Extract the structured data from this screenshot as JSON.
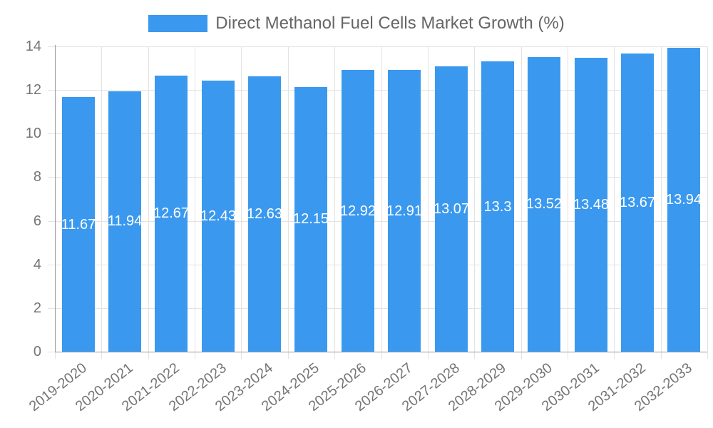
{
  "legend": {
    "label": "Direct Methanol Fuel Cells Market Growth (%)"
  },
  "colors": {
    "bar": "#3A99EE",
    "grid": "#E3E3E3",
    "axis": "#9A9A9A",
    "tick_text": "#757575",
    "title_text": "#666666",
    "value_label_text": "#FFFFFF",
    "background": "#FFFFFF"
  },
  "chart_data": {
    "type": "bar",
    "title": "Direct Methanol Fuel Cells Market Growth (%)",
    "categories": [
      "2019-2020",
      "2020-2021",
      "2021-2022",
      "2022-2023",
      "2023-2024",
      "2024-2025",
      "2025-2026",
      "2026-2027",
      "2027-2028",
      "2028-2029",
      "2029-2030",
      "2030-2031",
      "2031-2032",
      "2032-2033"
    ],
    "values": [
      11.67,
      11.94,
      12.67,
      12.43,
      12.63,
      12.15,
      12.92,
      12.91,
      13.07,
      13.3,
      13.52,
      13.48,
      13.67,
      13.94
    ],
    "xlabel": "",
    "ylabel": "",
    "ylim": [
      0,
      14
    ],
    "yticks": [
      0,
      2,
      4,
      6,
      8,
      10,
      12,
      14
    ],
    "grid": true,
    "legend_position": "top-center",
    "x_tick_rotation_deg": -38,
    "value_labels": "white, centered inside bars"
  }
}
